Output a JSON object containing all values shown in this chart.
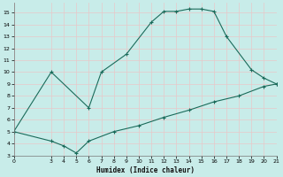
{
  "xlabel": "Humidex (Indice chaleur)",
  "xlim": [
    0,
    21
  ],
  "ylim": [
    3,
    15.8
  ],
  "xticks": [
    0,
    3,
    4,
    5,
    6,
    7,
    8,
    9,
    10,
    11,
    12,
    13,
    14,
    15,
    16,
    17,
    18,
    19,
    20,
    21
  ],
  "yticks": [
    3,
    4,
    5,
    6,
    7,
    8,
    9,
    10,
    11,
    12,
    13,
    14,
    15
  ],
  "background_color": "#c8ece9",
  "grid_color": "#e8c8c8",
  "line_color": "#1a6b5a",
  "upper_curve_x": [
    0,
    3,
    6,
    7,
    9,
    11,
    12,
    13,
    14,
    15,
    16,
    17,
    19,
    20,
    21
  ],
  "upper_curve_y": [
    5.0,
    10.0,
    7.0,
    10.0,
    11.5,
    14.2,
    15.1,
    15.1,
    15.3,
    15.3,
    15.1,
    13.0,
    10.2,
    9.5,
    9.0
  ],
  "lower_curve_x": [
    0,
    3,
    4,
    5,
    6,
    8,
    10,
    12,
    14,
    16,
    18,
    20,
    21
  ],
  "lower_curve_y": [
    5.0,
    4.2,
    3.8,
    3.2,
    4.2,
    5.0,
    5.5,
    6.2,
    6.8,
    7.5,
    8.0,
    8.8,
    9.0
  ]
}
